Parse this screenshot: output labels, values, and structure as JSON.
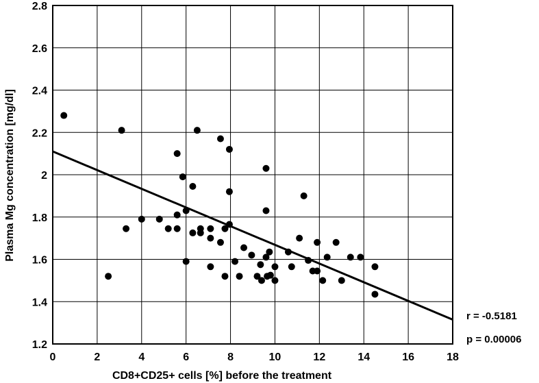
{
  "chart_data": {
    "type": "scatter",
    "xlabel": "CD8+CD25+ cells [%]  before the treatment",
    "ylabel": "Plasma Mg concentration [mg/dl]",
    "xlim": [
      0,
      18
    ],
    "ylim": [
      1.2,
      2.8
    ],
    "x_ticks": [
      "0",
      "2",
      "4",
      "6",
      "8",
      "10",
      "12",
      "14",
      "16",
      "18"
    ],
    "y_ticks": [
      "1.2",
      "1.4",
      "1.6",
      "1.8",
      "2",
      "2.2",
      "2.4",
      "2.6",
      "2.8"
    ],
    "grid": true,
    "points": [
      [
        0.5,
        2.28
      ],
      [
        2.5,
        1.52
      ],
      [
        3.1,
        2.21
      ],
      [
        3.3,
        1.745
      ],
      [
        4.0,
        1.79
      ],
      [
        4.8,
        1.79
      ],
      [
        5.2,
        1.745
      ],
      [
        5.6,
        2.1
      ],
      [
        5.6,
        1.81
      ],
      [
        5.6,
        1.745
      ],
      [
        5.85,
        1.99
      ],
      [
        6.0,
        1.83
      ],
      [
        6.0,
        1.59
      ],
      [
        6.3,
        1.945
      ],
      [
        6.3,
        1.725
      ],
      [
        6.5,
        2.21
      ],
      [
        6.65,
        1.745
      ],
      [
        6.65,
        1.725
      ],
      [
        7.1,
        1.745
      ],
      [
        7.1,
        1.7
      ],
      [
        7.1,
        1.565
      ],
      [
        7.55,
        2.17
      ],
      [
        7.55,
        1.68
      ],
      [
        7.75,
        1.745
      ],
      [
        7.75,
        1.52
      ],
      [
        7.95,
        2.12
      ],
      [
        7.95,
        1.92
      ],
      [
        7.95,
        1.765
      ],
      [
        8.2,
        1.59
      ],
      [
        8.4,
        1.52
      ],
      [
        8.6,
        1.655
      ],
      [
        8.95,
        1.62
      ],
      [
        9.2,
        1.52
      ],
      [
        9.35,
        1.575
      ],
      [
        9.4,
        1.5
      ],
      [
        9.6,
        2.03
      ],
      [
        9.6,
        1.83
      ],
      [
        9.6,
        1.61
      ],
      [
        9.65,
        1.52
      ],
      [
        9.75,
        1.635
      ],
      [
        9.8,
        1.525
      ],
      [
        10.0,
        1.565
      ],
      [
        10.0,
        1.5
      ],
      [
        10.6,
        1.635
      ],
      [
        10.75,
        1.565
      ],
      [
        11.1,
        1.7
      ],
      [
        11.3,
        1.9
      ],
      [
        11.5,
        1.595
      ],
      [
        11.7,
        1.545
      ],
      [
        11.9,
        1.68
      ],
      [
        11.9,
        1.545
      ],
      [
        12.15,
        1.5
      ],
      [
        12.35,
        1.61
      ],
      [
        12.75,
        1.68
      ],
      [
        13.0,
        1.5
      ],
      [
        13.4,
        1.61
      ],
      [
        13.85,
        1.61
      ],
      [
        14.5,
        1.565
      ],
      [
        14.5,
        1.435
      ]
    ],
    "regression_line": {
      "x": [
        0,
        18
      ],
      "y": [
        2.11,
        1.315
      ]
    },
    "annotations": [
      "r = -0.5181",
      "p = 0.00006"
    ]
  }
}
